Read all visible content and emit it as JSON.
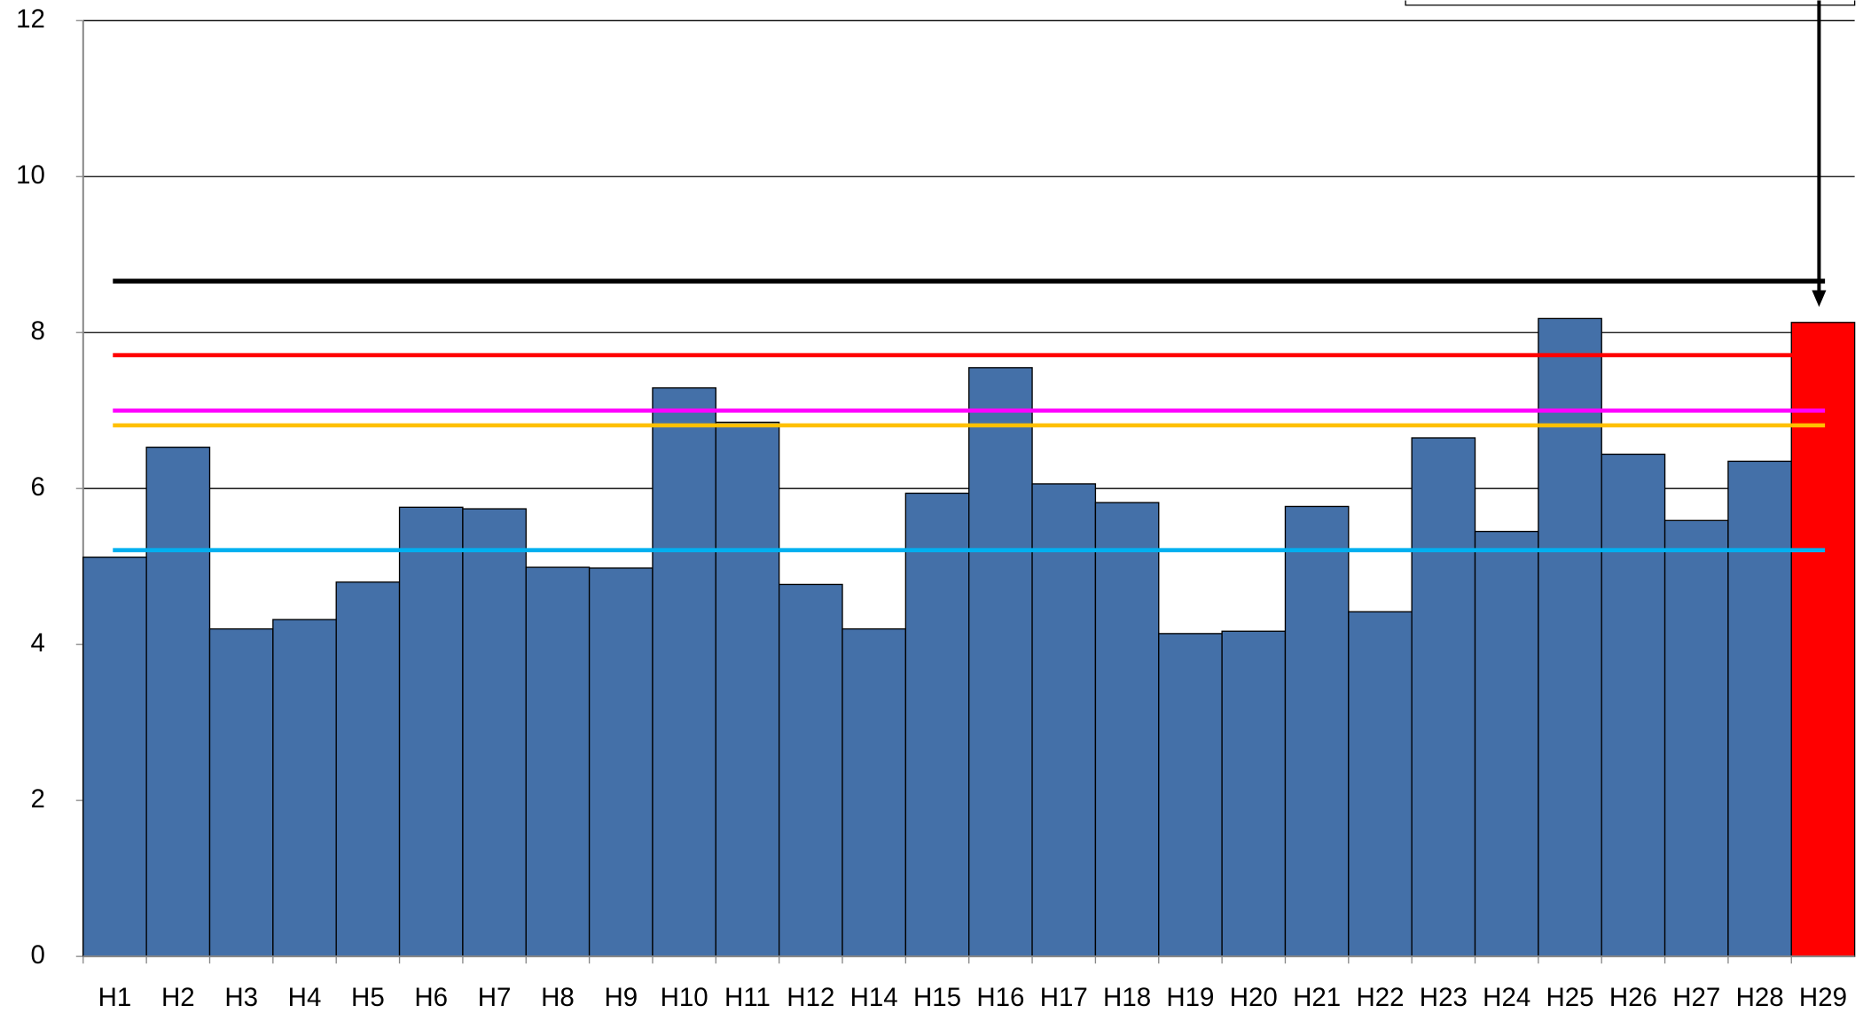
{
  "chart_data": {
    "type": "bar",
    "categories": [
      "H1",
      "H2",
      "H3",
      "H4",
      "H5",
      "H6",
      "H7",
      "H8",
      "H9",
      "H10",
      "H11",
      "H12",
      "H14",
      "H15",
      "H16",
      "H17",
      "H18",
      "H19",
      "H20",
      "H21",
      "H22",
      "H23",
      "H24",
      "H25",
      "H26",
      "H27",
      "H28",
      "H29"
    ],
    "values": [
      5.12,
      6.53,
      4.2,
      4.32,
      4.8,
      5.76,
      5.74,
      4.99,
      4.98,
      7.29,
      6.85,
      4.77,
      4.2,
      5.94,
      7.55,
      6.06,
      5.82,
      4.14,
      4.17,
      5.77,
      4.42,
      6.65,
      5.45,
      8.18,
      6.44,
      5.59,
      6.35,
      8.13
    ],
    "bar_colors": [
      "#4470a8",
      "#4470a8",
      "#4470a8",
      "#4470a8",
      "#4470a8",
      "#4470a8",
      "#4470a8",
      "#4470a8",
      "#4470a8",
      "#4470a8",
      "#4470a8",
      "#4470a8",
      "#4470a8",
      "#4470a8",
      "#4470a8",
      "#4470a8",
      "#4470a8",
      "#4470a8",
      "#4470a8",
      "#4470a8",
      "#4470a8",
      "#4470a8",
      "#4470a8",
      "#4470a8",
      "#4470a8",
      "#4470a8",
      "#4470a8",
      "#ff0000"
    ],
    "reference_lines": [
      {
        "value": 8.66,
        "color": "#000000"
      },
      {
        "value": 7.71,
        "color": "#ff0000"
      },
      {
        "value": 7.0,
        "color": "#ff00ff"
      },
      {
        "value": 6.81,
        "color": "#ffc000"
      },
      {
        "value": 5.21,
        "color": "#00b0f0"
      }
    ],
    "ylim": [
      0,
      12
    ],
    "yticks": [
      0,
      2,
      4,
      6,
      8,
      10,
      12
    ],
    "grid": true
  }
}
